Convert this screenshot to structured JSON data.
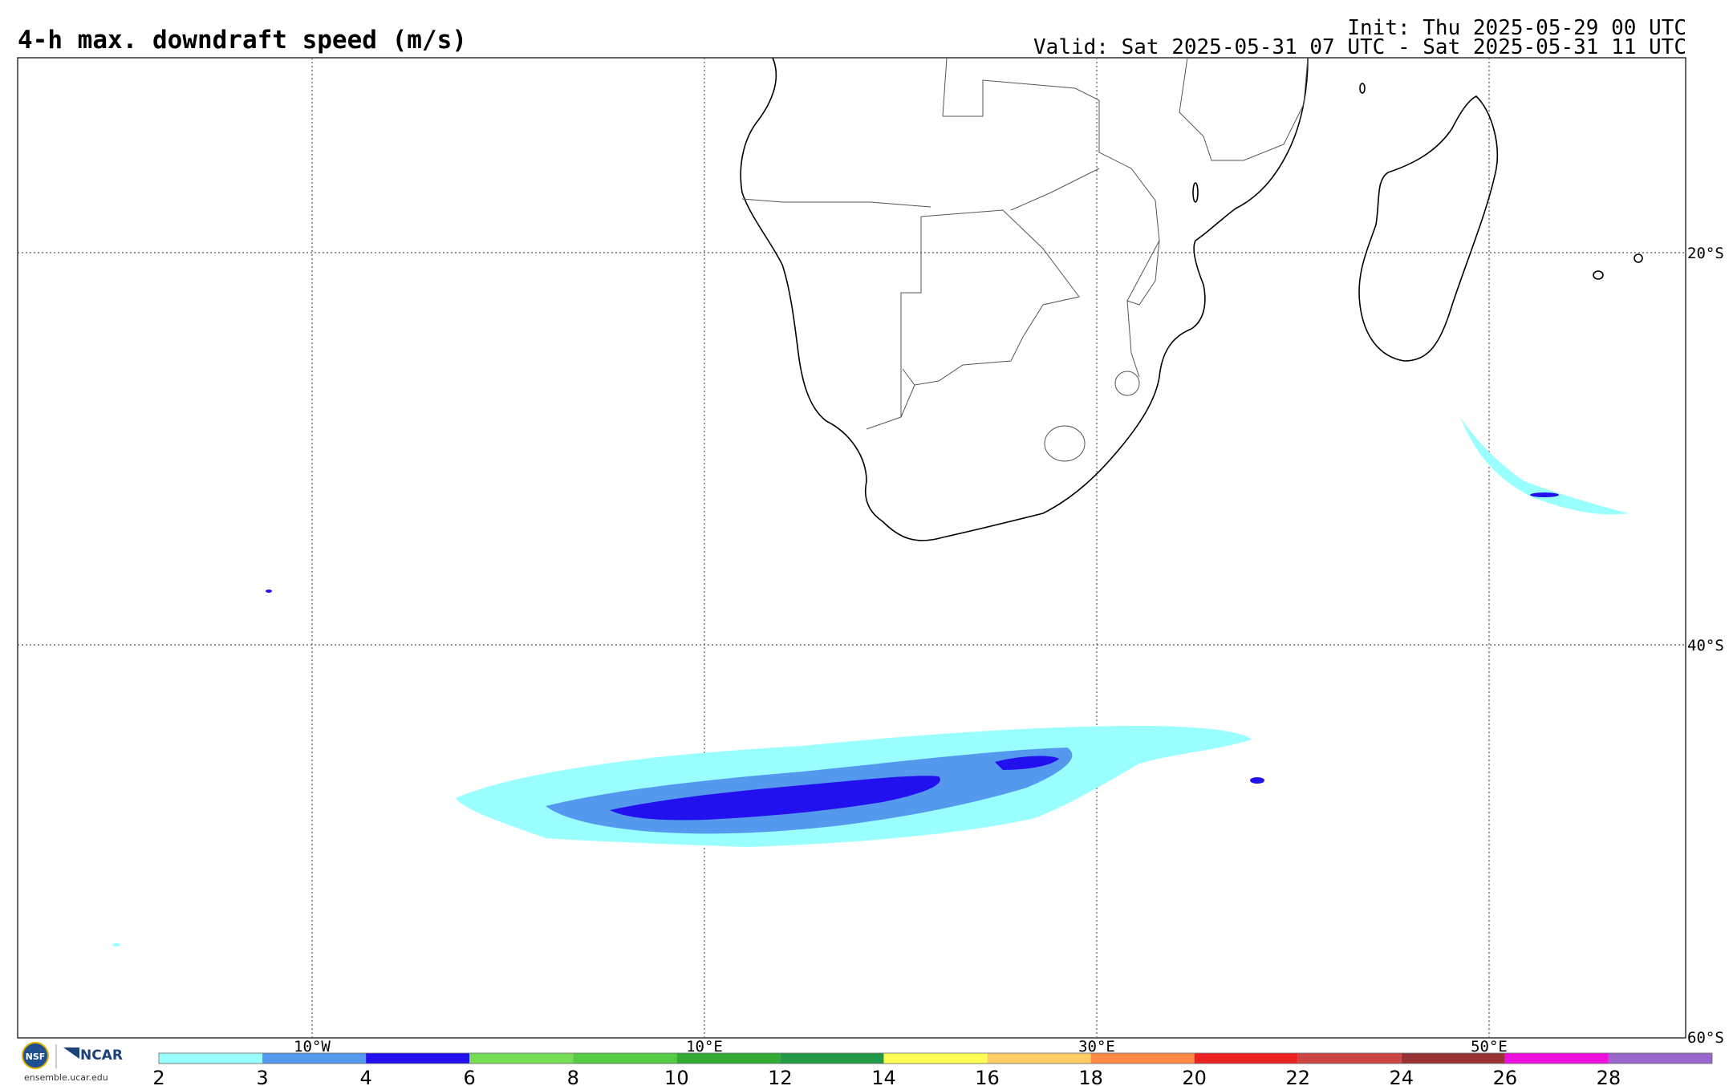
{
  "title": "4-h max. downdraft speed (m/s)",
  "init_text": "Init: Thu 2025-05-29 00 UTC",
  "valid_text": "Valid: Sat 2025-05-31 07 UTC - Sat 2025-05-31 11 UTC",
  "lon_labels": [
    "10°W",
    "10°E",
    "30°E",
    "50°E"
  ],
  "lat_labels": [
    "20°S",
    "40°S",
    "60°S"
  ],
  "colorbar": {
    "ticks": [
      "2",
      "3",
      "4",
      "6",
      "8",
      "10",
      "12",
      "14",
      "16",
      "18",
      "20",
      "22",
      "24",
      "26",
      "28"
    ],
    "colors": [
      "#99ffff",
      "#5599ee",
      "#2211ee",
      "#77dd55",
      "#55cc44",
      "#33aa33",
      "#229944",
      "#ffff55",
      "#ffcc66",
      "#ff8844",
      "#ee2222",
      "#cc4444",
      "#993333",
      "#ee11dd",
      "#9966cc"
    ]
  },
  "logos": {
    "nsf": "NSF",
    "ncar": "NCAR",
    "url": "ensemble.ucar.edu"
  }
}
